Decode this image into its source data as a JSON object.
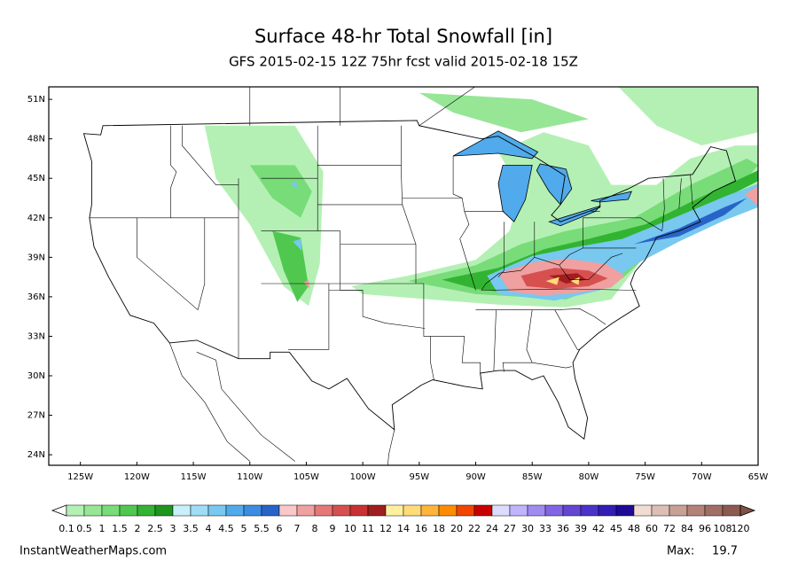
{
  "title": "Surface 48-hr Total Snowfall [in]",
  "subtitle": "GFS 2015-02-15 12Z 75hr fcst valid 2015-02-18 15Z",
  "map": {
    "xlim": [
      -127.8,
      -65
    ],
    "ylim": [
      23.2,
      51.95
    ],
    "xticks": [
      {
        "value": -125,
        "label": "125W"
      },
      {
        "value": -120,
        "label": "120W"
      },
      {
        "value": -115,
        "label": "115W"
      },
      {
        "value": -110,
        "label": "110W"
      },
      {
        "value": -105,
        "label": "105W"
      },
      {
        "value": -100,
        "label": "100W"
      },
      {
        "value": -95,
        "label": "95W"
      },
      {
        "value": -90,
        "label": "90W"
      },
      {
        "value": -85,
        "label": "85W"
      },
      {
        "value": -80,
        "label": "80W"
      },
      {
        "value": -75,
        "label": "75W"
      },
      {
        "value": -70,
        "label": "70W"
      },
      {
        "value": -65,
        "label": "65W"
      }
    ],
    "yticks": [
      {
        "value": 51,
        "label": "51N"
      },
      {
        "value": 48,
        "label": "48N"
      },
      {
        "value": 45,
        "label": "45N"
      },
      {
        "value": 42,
        "label": "42N"
      },
      {
        "value": 39,
        "label": "39N"
      },
      {
        "value": 36,
        "label": "36N"
      },
      {
        "value": 33,
        "label": "33N"
      },
      {
        "value": 30,
        "label": "30N"
      },
      {
        "value": 27,
        "label": "27N"
      },
      {
        "value": 24,
        "label": "24N"
      }
    ]
  },
  "colorbar": {
    "levels": [
      0.1,
      0.5,
      1,
      1.5,
      2,
      2.5,
      3,
      3.5,
      4,
      4.5,
      5,
      5.5,
      6,
      7,
      8,
      9,
      10,
      11,
      12,
      14,
      16,
      18,
      20,
      22,
      24,
      27,
      30,
      33,
      36,
      39,
      42,
      45,
      48,
      60,
      72,
      84,
      96,
      108,
      120
    ],
    "colors": [
      "#b4f0b4",
      "#96e696",
      "#78dc78",
      "#50c850",
      "#32b432",
      "#1e961e",
      "#c8f0fa",
      "#a0dcf5",
      "#78c8f0",
      "#50aaeb",
      "#3c8ce1",
      "#2864c8",
      "#fac8c8",
      "#f0a0a0",
      "#e67878",
      "#d75050",
      "#c83232",
      "#a01e1e",
      "#fff0a0",
      "#ffdc78",
      "#ffb43c",
      "#ff8c00",
      "#f04600",
      "#c80000",
      "#dcdcff",
      "#c0b4ff",
      "#a08cf0",
      "#8264e6",
      "#6446d2",
      "#4b32c8",
      "#321eb4",
      "#1e0a96",
      "#f0dcd2",
      "#dcbeb4",
      "#c8a096",
      "#b48278",
      "#a06e64",
      "#8c5a50"
    ],
    "under_color": "#ffffff",
    "over_color": "#825046"
  },
  "footer": {
    "source": "InstantWeatherMaps.com",
    "max_label": "Max:",
    "max_value": 19.7
  }
}
